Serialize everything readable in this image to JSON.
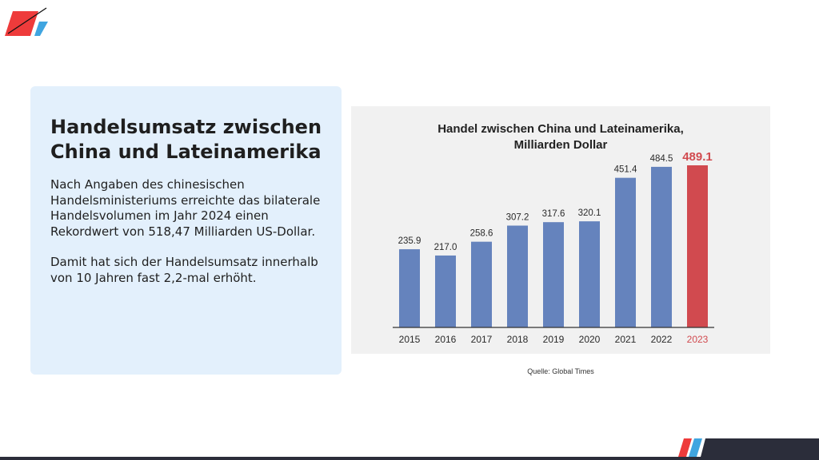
{
  "info": {
    "title": "Handelsumsatz zwischen China und Lateinamerika",
    "paragraph1": "Nach Angaben des chinesischen Handelsministeriums erreichte das bilaterale Handelsvolumen im Jahr 2024 einen Rekordwert von 518,47 Milliarden US-Dollar.",
    "paragraph2": "Damit hat sich der Handelsumsatz innerhalb von 10 Jahren fast 2,2-mal erhöht."
  },
  "source": "Quelle: Global Times",
  "colors": {
    "bar": "#6583bd",
    "highlight": "#d14a4f",
    "logo_red": "#ee3b3b",
    "logo_blue": "#40a5e0",
    "footer_dark": "#2b2d3a"
  },
  "chart_data": {
    "type": "bar",
    "title": "Handel zwischen China und Lateinamerika, Milliarden Dollar",
    "title_lines": [
      "Handel zwischen China und Lateinamerika,",
      "Milliarden Dollar"
    ],
    "categories": [
      "2015",
      "2016",
      "2017",
      "2018",
      "2019",
      "2020",
      "2021",
      "2022",
      "2023"
    ],
    "values": [
      235.9,
      217.0,
      258.6,
      307.2,
      317.6,
      320.1,
      451.4,
      484.5,
      489.1
    ],
    "value_labels": [
      "235.9",
      "217.0",
      "258.6",
      "307.2",
      "317.6",
      "320.1",
      "451.4",
      "484.5",
      "489.1"
    ],
    "highlight_category": "2023",
    "ylim": [
      0,
      489.1
    ],
    "grid": false,
    "legend": "none"
  }
}
